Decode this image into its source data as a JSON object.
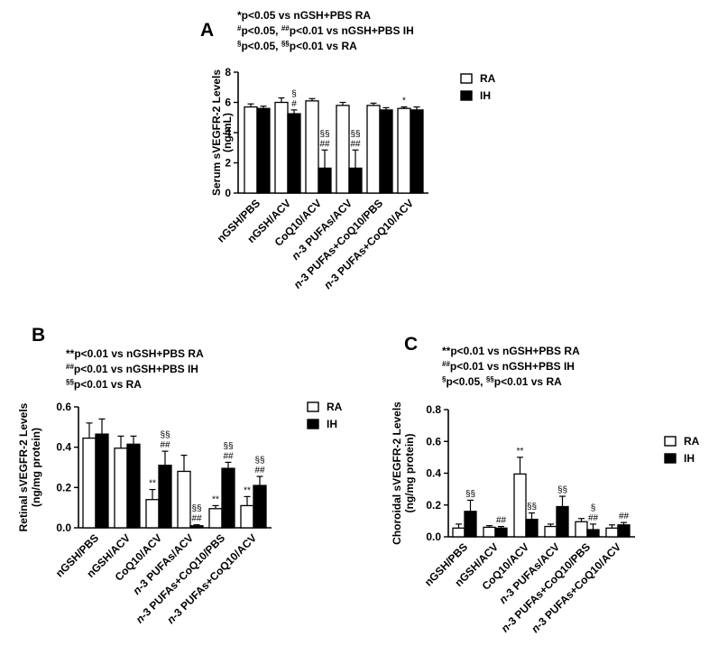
{
  "chart_data": [
    {
      "type": "bar",
      "panel_label": "A",
      "notes": [
        {
          "sup": "",
          "text": "*p<0.05 vs nGSH+PBS RA"
        },
        {
          "sup": "#",
          "text": "p<0.05, ",
          "sup2": "##",
          "text2": "p<0.01 vs nGSH+PBS IH"
        },
        {
          "sup": "§",
          "text": "p<0.05, ",
          "sup2": "§§",
          "text2": "p<0.01 vs RA"
        }
      ],
      "ylabel_line1": "Serum sVEGFR-2 Levels",
      "ylabel_line2": "(ng/mL)",
      "ylim": [
        0,
        8
      ],
      "yticks": [
        "0",
        "2",
        "4",
        "6",
        "8"
      ],
      "categories": [
        "nGSH/PBS",
        "nGSH/ACV",
        "CoQ10/ACV",
        "n-3 PUFAs/ACV",
        "n-3 PUFAs+CoQ10/PBS",
        "n-3 PUFAs+CoQ10/ACV"
      ],
      "category_italic_prefix": [
        "",
        "",
        "",
        "n",
        "n",
        "n"
      ],
      "category_rest": [
        "nGSH/PBS",
        "nGSH/ACV",
        "CoQ10/ACV",
        "-3 PUFAs/ACV",
        "-3 PUFAs+CoQ10/PBS",
        "-3 PUFAs+CoQ10/ACV"
      ],
      "legend": [
        "RA",
        "IH"
      ],
      "series": [
        {
          "name": "RA",
          "values": [
            5.7,
            6.0,
            6.1,
            5.8,
            5.8,
            5.6
          ],
          "errors": [
            0.2,
            0.3,
            0.15,
            0.2,
            0.15,
            0.1
          ],
          "annotations": [
            [],
            [],
            [],
            [],
            [],
            [
              "*"
            ]
          ]
        },
        {
          "name": "IH",
          "values": [
            5.6,
            5.25,
            1.65,
            1.65,
            5.5,
            5.5
          ],
          "errors": [
            0.15,
            0.25,
            1.2,
            1.2,
            0.15,
            0.2
          ],
          "annotations": [
            [],
            [
              "§",
              "#"
            ],
            [
              "§§",
              "##"
            ],
            [
              "§§",
              "##"
            ],
            [],
            []
          ]
        }
      ]
    },
    {
      "type": "bar",
      "panel_label": "B",
      "notes": [
        {
          "sup": "",
          "text": "**p<0.01 vs nGSH+PBS RA"
        },
        {
          "sup": "##",
          "text": "p<0.01 vs nGSH+PBS IH"
        },
        {
          "sup": "§§",
          "text": "p<0.01 vs RA"
        }
      ],
      "ylabel_line1": "Retinal sVEGFR-2 Levels",
      "ylabel_line2": "(ng/mg protein)",
      "ylim": [
        0,
        0.6
      ],
      "yticks": [
        "0.0",
        "0.2",
        "0.4",
        "0.6"
      ],
      "categories": [
        "nGSH/PBS",
        "nGSH/ACV",
        "CoQ10/ACV",
        "n-3 PUFAs/ACV",
        "n-3 PUFAs+CoQ10/PBS",
        "n-3 PUFAs+CoQ10/ACV"
      ],
      "category_italic_prefix": [
        "",
        "",
        "",
        "n",
        "n",
        "n"
      ],
      "category_rest": [
        "nGSH/PBS",
        "nGSH/ACV",
        "CoQ10/ACV",
        "-3 PUFAs/ACV",
        "-3 PUFAs+CoQ10/PBS",
        "-3 PUFAs+CoQ10/ACV"
      ],
      "legend": [
        "RA",
        "IH"
      ],
      "series": [
        {
          "name": "RA",
          "values": [
            0.445,
            0.395,
            0.14,
            0.28,
            0.095,
            0.11
          ],
          "errors": [
            0.075,
            0.06,
            0.05,
            0.08,
            0.015,
            0.045
          ],
          "annotations": [
            [],
            [],
            [
              "**"
            ],
            [],
            [
              "**"
            ],
            [
              "**"
            ]
          ]
        },
        {
          "name": "IH",
          "values": [
            0.465,
            0.415,
            0.31,
            0.01,
            0.295,
            0.21
          ],
          "errors": [
            0.075,
            0.04,
            0.07,
            0.005,
            0.03,
            0.045
          ],
          "annotations": [
            [],
            [],
            [
              "§§",
              "##"
            ],
            [
              "§§",
              "##"
            ],
            [
              "§§",
              "##"
            ],
            [
              "§§",
              "##"
            ]
          ]
        }
      ]
    },
    {
      "type": "bar",
      "panel_label": "C",
      "notes": [
        {
          "sup": "",
          "text": "**p<0.01 vs nGSH+PBS RA"
        },
        {
          "sup": "##",
          "text": "p<0.01 vs nGSH+PBS IH"
        },
        {
          "sup": "§",
          "text": "p<0.05, ",
          "sup2": "§§",
          "text2": "p<0.01 vs RA"
        }
      ],
      "ylabel_line1": "Choroidal sVEGFR-2 Levels",
      "ylabel_line2": "(ng/mg protein)",
      "ylim": [
        0,
        0.8
      ],
      "yticks": [
        "0.0",
        "0.2",
        "0.4",
        "0.6",
        "0.8"
      ],
      "categories": [
        "nGSH/PBS",
        "nGSH/ACV",
        "CoQ10/ACV",
        "n-3 PUFAs/ACV",
        "n-3 PUFAs+CoQ10/PBS",
        "n-3 PUFAs+CoQ10/ACV"
      ],
      "category_italic_prefix": [
        "",
        "",
        "",
        "n",
        "n",
        "n"
      ],
      "category_rest": [
        "nGSH/PBS",
        "nGSH/ACV",
        "CoQ10/ACV",
        "-3 PUFAs/ACV",
        "-3 PUFAs+CoQ10/PBS",
        "-3 PUFAs+CoQ10/ACV"
      ],
      "legend": [
        "RA",
        "IH"
      ],
      "series": [
        {
          "name": "RA",
          "values": [
            0.055,
            0.06,
            0.395,
            0.065,
            0.095,
            0.055
          ],
          "errors": [
            0.025,
            0.01,
            0.105,
            0.015,
            0.02,
            0.02
          ],
          "annotations": [
            [],
            [],
            [
              "**"
            ],
            [],
            [],
            []
          ]
        },
        {
          "name": "IH",
          "values": [
            0.16,
            0.055,
            0.11,
            0.19,
            0.045,
            0.075
          ],
          "errors": [
            0.07,
            0.01,
            0.04,
            0.065,
            0.035,
            0.015
          ],
          "annotations": [
            [
              "§§"
            ],
            [
              "##"
            ],
            [
              "§§"
            ],
            [
              "§§"
            ],
            [
              "§",
              "##"
            ],
            [
              "##"
            ]
          ]
        }
      ]
    }
  ]
}
